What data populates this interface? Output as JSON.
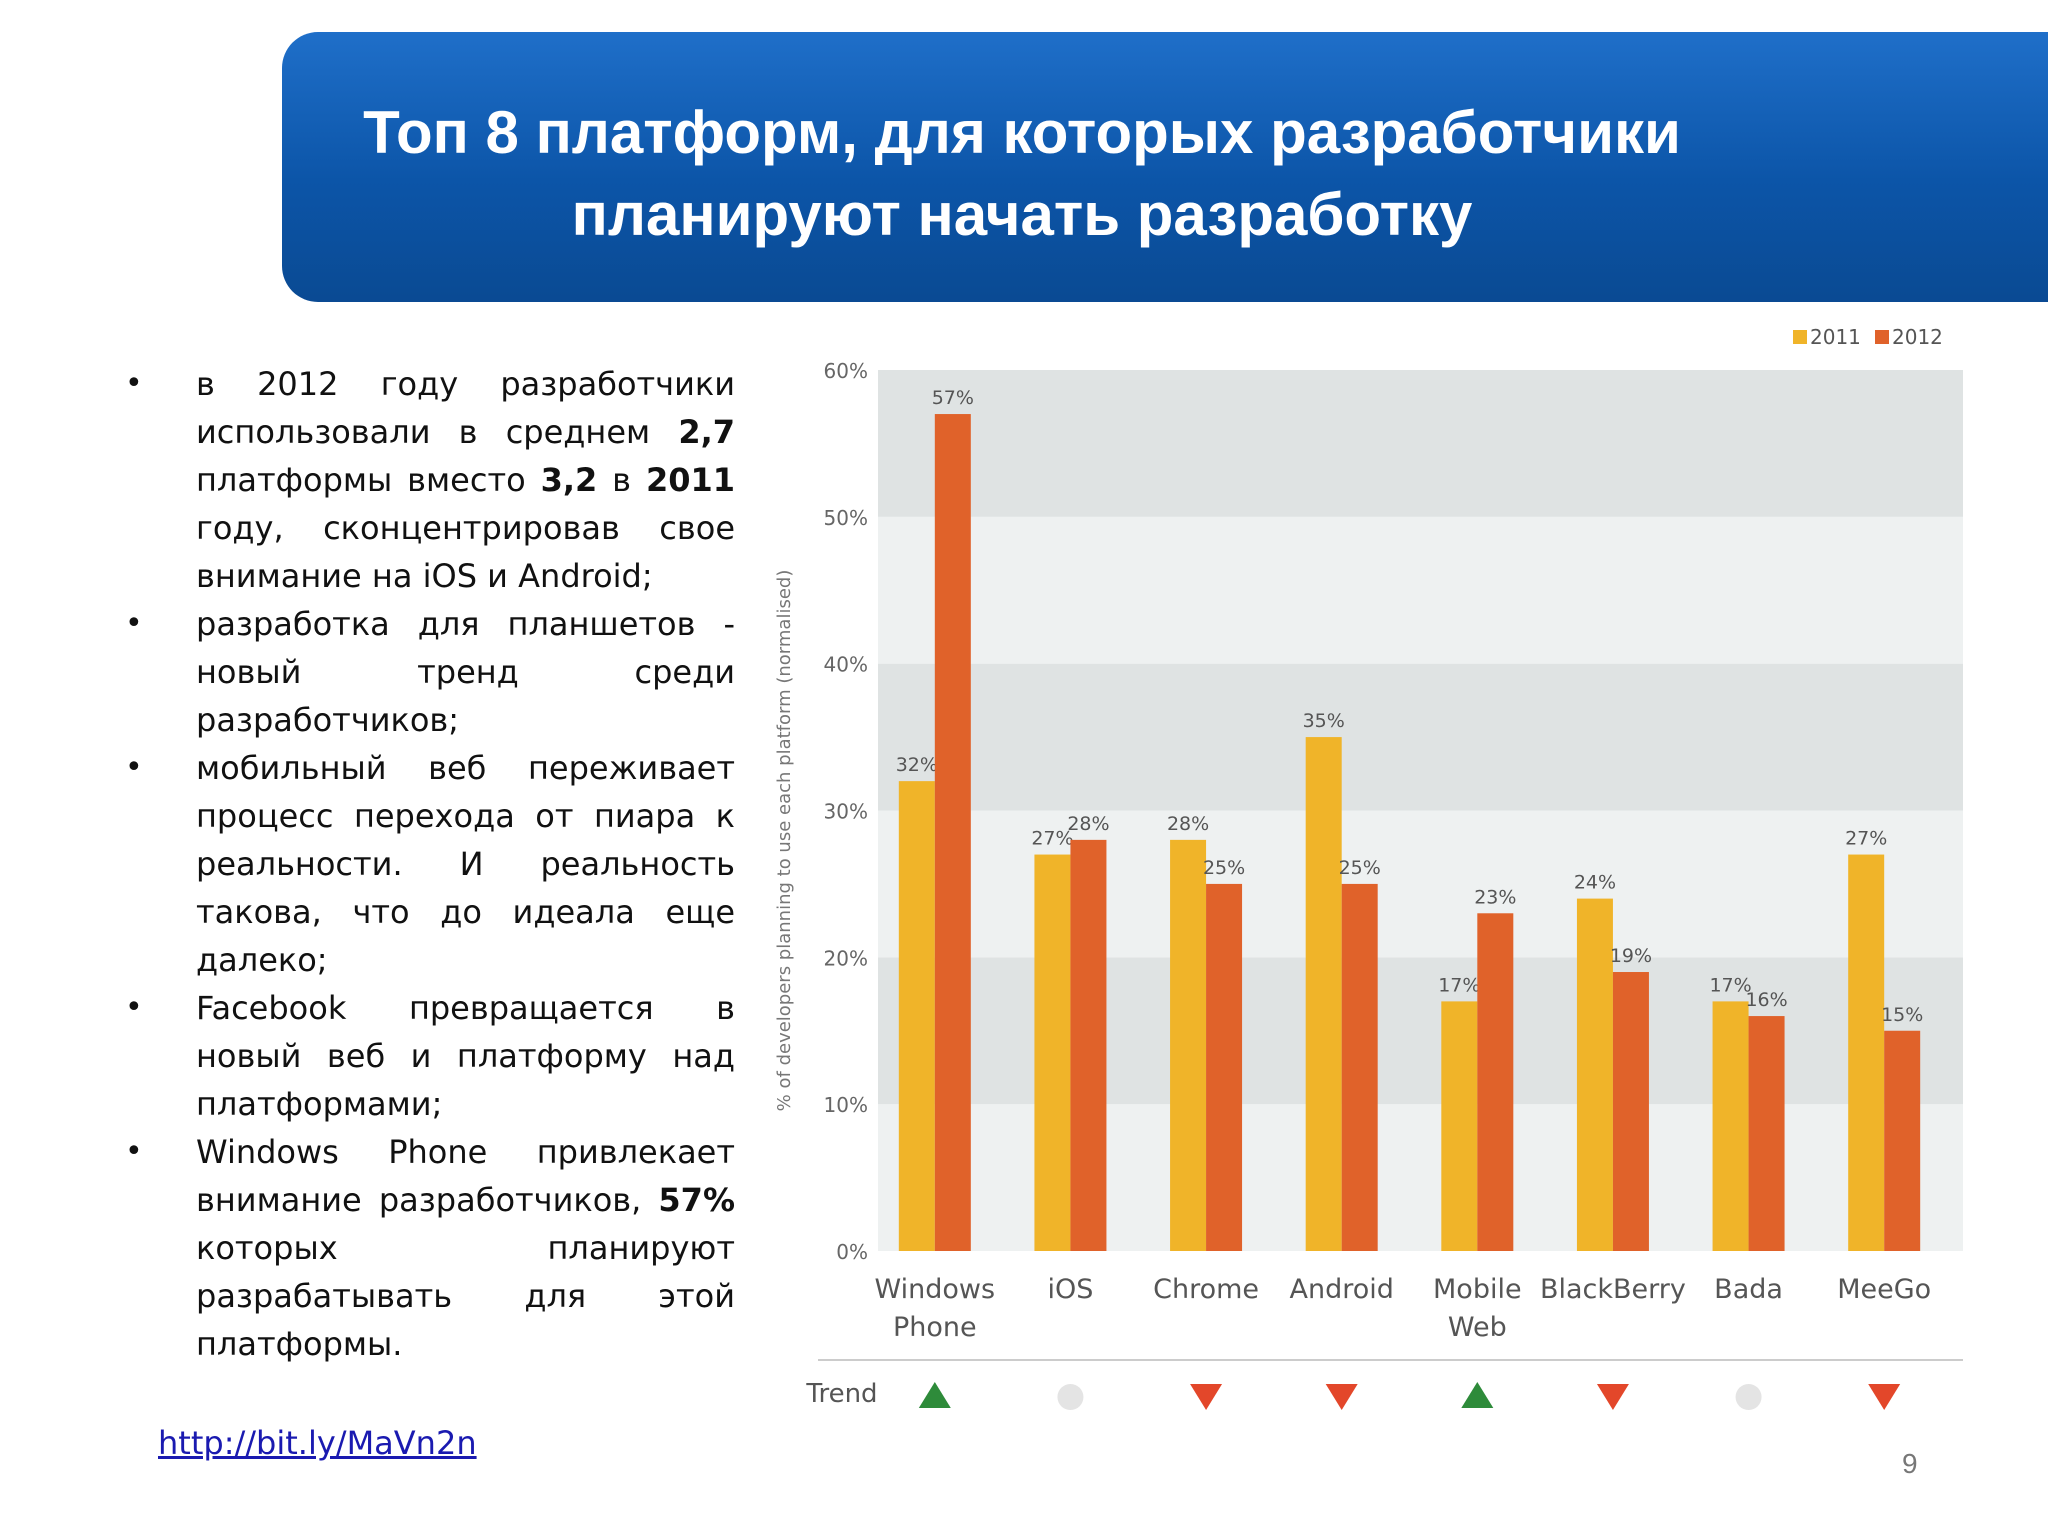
{
  "slide": {
    "title_line1": "Топ 8 платформ, для которых разработчики",
    "title_line2": "планируют начать разработку",
    "bullets": [
      [
        {
          "t": "в 2012 году разработчики использовали в среднем "
        },
        {
          "t": "2,7",
          "b": true
        },
        {
          "t": " платформы вместо "
        },
        {
          "t": "3,2",
          "b": true
        },
        {
          "t": " в "
        },
        {
          "t": "2011",
          "b": true
        },
        {
          "t": " году, сконцентрировав свое внимание на iOS и Android;"
        }
      ],
      [
        {
          "t": "разработка для планшетов - новый тренд среди разработчиков;"
        }
      ],
      [
        {
          "t": "мобильный веб переживает процесс перехода от пиара к реальности. И реальность такова, что до идеала еще далеко;"
        }
      ],
      [
        {
          "t": "Facebook превращается в новый веб и платформу над платформами;"
        }
      ],
      [
        {
          "t": "Windows Phone привлекает внимание разработчиков, "
        },
        {
          "t": "57%",
          "b": true
        },
        {
          "t": " которых планируют разрабатывать для этой платформы."
        }
      ]
    ],
    "source_link": "http://bit.ly/MaVn2n",
    "page_number": "9"
  },
  "colors": {
    "series_2011": "#f0b429",
    "series_2012": "#e0622a",
    "band_dark": "#dfe3e3",
    "band_light": "#eef1f1",
    "trend_up": "#2e8b3a",
    "trend_down": "#e3472a",
    "trend_neutral": "#e4e4e4",
    "banner": "#0c55a8"
  },
  "chart_data": {
    "type": "bar",
    "title": "",
    "ylabel": "% of developers planning to use each platform (normalised)",
    "xlabel": "",
    "ylim": [
      0,
      60
    ],
    "yticks": [
      "0%",
      "10%",
      "20%",
      "30%",
      "40%",
      "50%",
      "60%"
    ],
    "legend_position": "top-right",
    "categories": [
      [
        "Windows",
        "Phone"
      ],
      [
        "iOS"
      ],
      [
        "Chrome"
      ],
      [
        "Android"
      ],
      [
        "Mobile",
        "Web"
      ],
      [
        "BlackBerry"
      ],
      [
        "Bada"
      ],
      [
        "MeeGo"
      ]
    ],
    "series": [
      {
        "name": "2011",
        "values": [
          32,
          27,
          28,
          35,
          17,
          24,
          17,
          27
        ],
        "labels": [
          "32%",
          "27%",
          "28%",
          "35%",
          "17%",
          "24%",
          "17%",
          "27%"
        ]
      },
      {
        "name": "2012",
        "values": [
          57,
          28,
          25,
          25,
          23,
          19,
          16,
          15
        ],
        "labels": [
          "57%",
          "28%",
          "25%",
          "25%",
          "23%",
          "19%",
          "16%",
          "15%"
        ]
      }
    ],
    "trend_label": "Trend",
    "trend": [
      "up",
      "neutral",
      "down",
      "down",
      "up",
      "down",
      "neutral",
      "down"
    ],
    "grid": "alternating horizontal bands"
  }
}
